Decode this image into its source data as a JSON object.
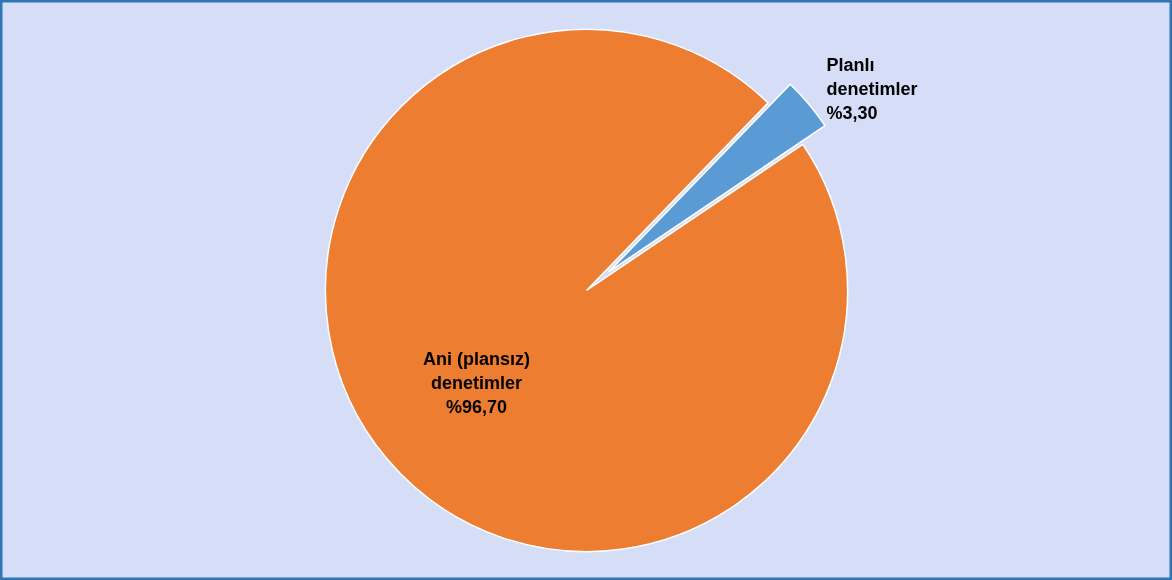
{
  "chart_data": {
    "type": "pie",
    "categories": [
      "Planlı denetimler",
      "Ani (plansız) denetimler"
    ],
    "values": [
      3.3,
      96.7
    ],
    "colors": [
      "#5b9bd5",
      "#ed7d31"
    ],
    "value_labels": [
      "%3,30",
      "%96,70"
    ]
  }
}
